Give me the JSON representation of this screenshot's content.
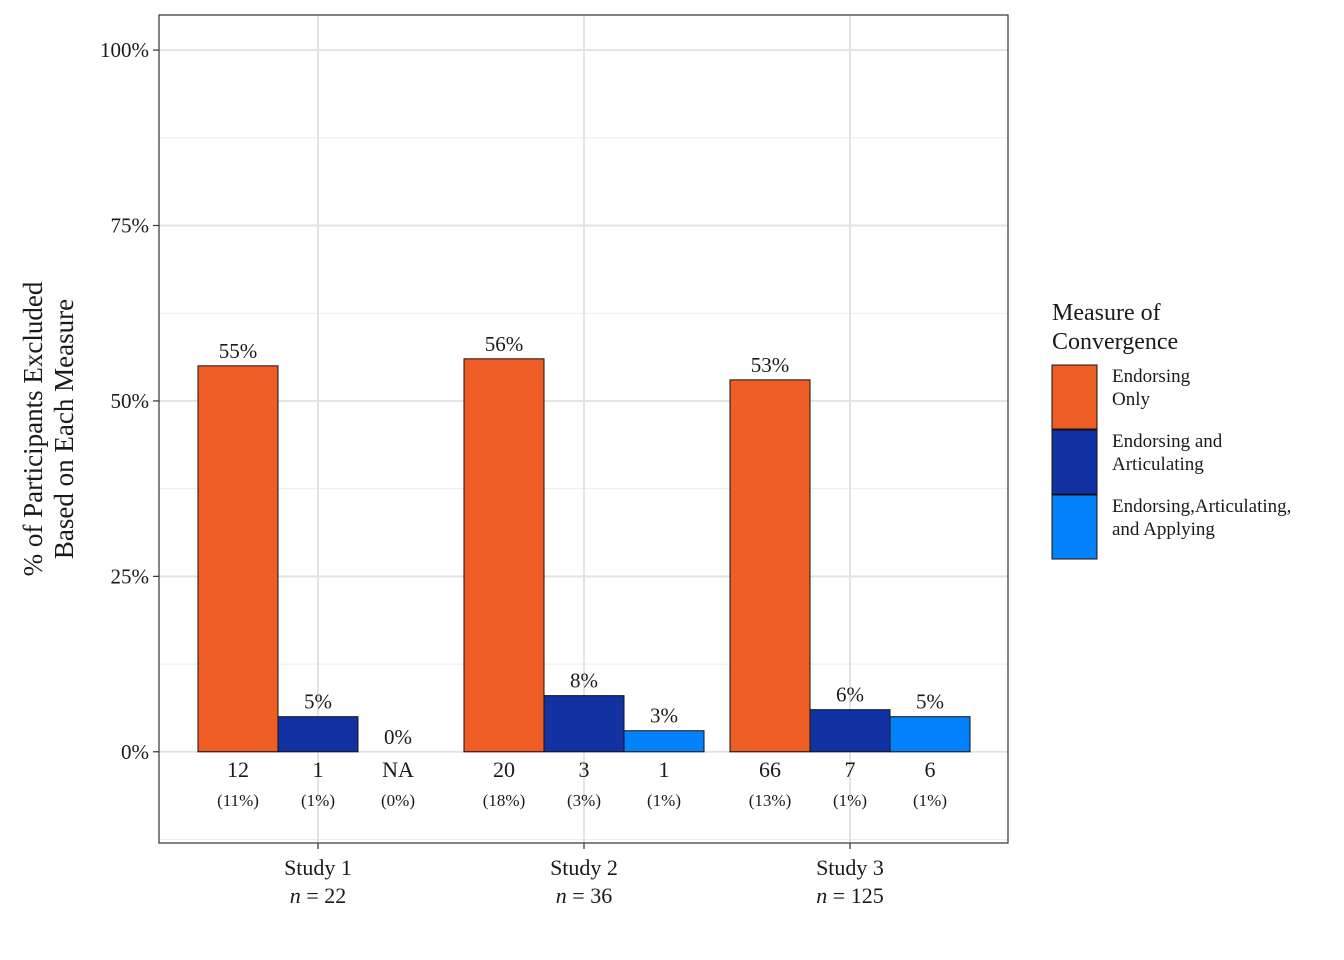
{
  "chart_data": {
    "type": "bar",
    "title": "",
    "ylabel_lines": [
      "% of Participants Excluded",
      "Based on Each Measure"
    ],
    "ylim": [
      -13,
      105
    ],
    "yticks": [
      0,
      25,
      50,
      75,
      100
    ],
    "ytick_labels": [
      "0%",
      "25%",
      "50%",
      "75%",
      "100%"
    ],
    "grid": true,
    "legend_position": "right",
    "legend_title_lines": [
      "Measure of",
      "Convergence"
    ],
    "series": [
      {
        "name_lines": [
          "Endorsing",
          "Only"
        ],
        "color": "#EF5F25"
      },
      {
        "name_lines": [
          "Endorsing and",
          "Articulating"
        ],
        "color": "#1232A4"
      },
      {
        "name_lines": [
          "Endorsing,Articulating,",
          "and Applying"
        ],
        "color": "#0382FB"
      }
    ],
    "groups": [
      {
        "label": "Study 1",
        "n_prefix": "n",
        "n_text": " = 22",
        "bars": [
          {
            "value": 55,
            "label": "55%",
            "count": "12",
            "pct": "(11%)"
          },
          {
            "value": 5,
            "label": "5%",
            "count": "1",
            "pct": "(1%)"
          },
          {
            "value": 0,
            "label": "0%",
            "count": "NA",
            "pct": "(0%)"
          }
        ]
      },
      {
        "label": "Study 2",
        "n_prefix": "n",
        "n_text": " = 36",
        "bars": [
          {
            "value": 56,
            "label": "56%",
            "count": "20",
            "pct": "(18%)"
          },
          {
            "value": 8,
            "label": "8%",
            "count": "3",
            "pct": "(3%)"
          },
          {
            "value": 3,
            "label": "3%",
            "count": "1",
            "pct": "(1%)"
          }
        ]
      },
      {
        "label": "Study 3",
        "n_prefix": "n",
        "n_text": " = 125",
        "bars": [
          {
            "value": 53,
            "label": "53%",
            "count": "66",
            "pct": "(13%)"
          },
          {
            "value": 6,
            "label": "6%",
            "count": "7",
            "pct": "(1%)"
          },
          {
            "value": 5,
            "label": "5%",
            "count": "6",
            "pct": "(1%)"
          }
        ]
      }
    ]
  }
}
